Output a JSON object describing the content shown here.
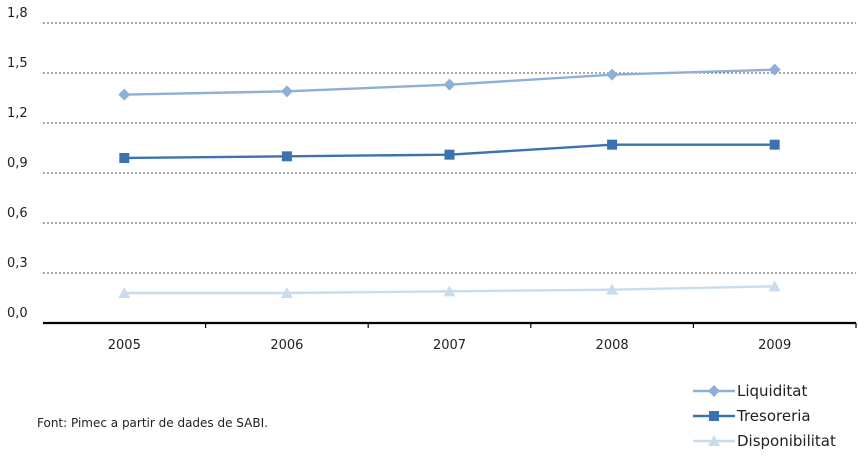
{
  "chart_data": {
    "type": "line",
    "title": "",
    "xlabel": "",
    "ylabel": "",
    "x": [
      "2005",
      "2006",
      "2007",
      "2008",
      "2009"
    ],
    "ylim": [
      0,
      1.8
    ],
    "yticks": [
      "0,0",
      "0,3",
      "0,6",
      "0,9",
      "1,2",
      "1,5",
      "1,8"
    ],
    "yticks_values": [
      0,
      0.3,
      0.6,
      0.9,
      1.2,
      1.5,
      1.8
    ],
    "grid": "horizontal dotted",
    "legend_position": "bottom-right",
    "series": [
      {
        "name": "Liquiditat",
        "values": [
          1.37,
          1.39,
          1.43,
          1.49,
          1.52
        ],
        "color": "#8eb0d6",
        "marker": "diamond"
      },
      {
        "name": "Tresoreria",
        "values": [
          0.99,
          1.0,
          1.01,
          1.07,
          1.07
        ],
        "color": "#3b73b1",
        "marker": "square"
      },
      {
        "name": "Disponibilitat",
        "values": [
          0.18,
          0.18,
          0.19,
          0.2,
          0.22
        ],
        "color": "#c9dcee",
        "marker": "triangle"
      }
    ]
  },
  "source": "Font: Pimec a partir de dades de SABI."
}
